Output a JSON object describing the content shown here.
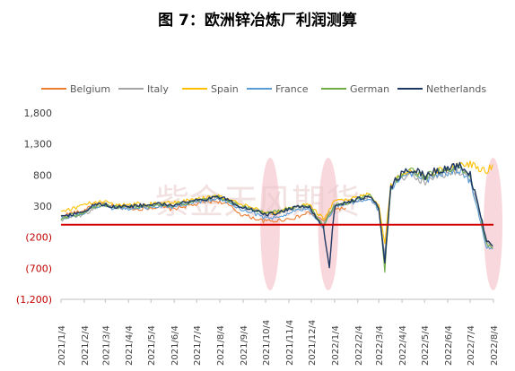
{
  "chart_data": {
    "type": "line",
    "title": "图 7：欧洲锌冶炼厂利润测算",
    "xlabel": "",
    "ylabel": "",
    "ylim": [
      -1200,
      1800
    ],
    "yticks": [
      {
        "value": 1800,
        "label": "1,800"
      },
      {
        "value": 1300,
        "label": "1,300"
      },
      {
        "value": 800,
        "label": "800"
      },
      {
        "value": 300,
        "label": "300"
      },
      {
        "value": -200,
        "label": "(200)"
      },
      {
        "value": -700,
        "label": "(700)"
      },
      {
        "value": -1200,
        "label": "(1,200)"
      }
    ],
    "xlim": [
      "2021-01-04",
      "2022-08-04"
    ],
    "xticks": [
      {
        "date": "2021-01-04",
        "label": "2021/1/4"
      },
      {
        "date": "2021-02-04",
        "label": "2021/2/4"
      },
      {
        "date": "2021-03-04",
        "label": "2021/3/4"
      },
      {
        "date": "2021-04-04",
        "label": "2021/4/4"
      },
      {
        "date": "2021-05-04",
        "label": "2021/5/4"
      },
      {
        "date": "2021-06-04",
        "label": "2021/6/4"
      },
      {
        "date": "2021-07-04",
        "label": "2021/7/4"
      },
      {
        "date": "2021-08-04",
        "label": "2021/8/4"
      },
      {
        "date": "2021-09-04",
        "label": "2021/9/4"
      },
      {
        "date": "2021-10-04",
        "label": "2021/10/4"
      },
      {
        "date": "2021-11-04",
        "label": "2021/11/4"
      },
      {
        "date": "2021-12-04",
        "label": "2021/12/4"
      },
      {
        "date": "2022-01-04",
        "label": "2022/1/4"
      },
      {
        "date": "2022-02-04",
        "label": "2022/2/4"
      },
      {
        "date": "2022-03-04",
        "label": "2022/3/4"
      },
      {
        "date": "2022-04-04",
        "label": "2022/4/4"
      },
      {
        "date": "2022-05-04",
        "label": "2022/5/4"
      },
      {
        "date": "2022-06-04",
        "label": "2022/6/4"
      },
      {
        "date": "2022-07-04",
        "label": "2022/7/4"
      },
      {
        "date": "2022-08-04",
        "label": "2022/8/4"
      }
    ],
    "legend_position": "top",
    "grid": false,
    "reference_line": {
      "value": 0,
      "color": "#d40000"
    },
    "highlights": [
      {
        "from": "2021-09-27",
        "to": "2021-10-23",
        "color": "#f4b8c1"
      },
      {
        "from": "2021-12-13",
        "to": "2022-01-09",
        "color": "#f4b8c1"
      },
      {
        "from": "2022-07-22",
        "to": "2022-08-16",
        "color": "#f4b8c1"
      }
    ],
    "watermark": "紫金天风期货",
    "series": [
      {
        "name": "Belgium",
        "color": "#ed7d31",
        "points": [
          [
            "2021-01-04",
            140
          ],
          [
            "2021-01-18",
            190
          ],
          [
            "2021-02-01",
            210
          ],
          [
            "2021-02-15",
            330
          ],
          [
            "2021-03-01",
            330
          ],
          [
            "2021-03-15",
            290
          ],
          [
            "2021-04-01",
            290
          ],
          [
            "2021-04-15",
            250
          ],
          [
            "2021-05-01",
            270
          ],
          [
            "2021-05-15",
            290
          ],
          [
            "2021-06-01",
            250
          ],
          [
            "2021-06-15",
            290
          ],
          [
            "2021-07-01",
            320
          ],
          [
            "2021-07-15",
            370
          ],
          [
            "2021-08-01",
            380
          ],
          [
            "2021-08-15",
            320
          ],
          [
            "2021-09-01",
            170
          ],
          [
            "2021-09-15",
            120
          ],
          [
            "2021-10-01",
            60
          ],
          [
            "2021-10-15",
            60
          ],
          [
            "2021-11-01",
            90
          ],
          [
            "2021-11-15",
            120
          ],
          [
            "2021-12-01",
            200
          ],
          [
            "2021-12-20",
            60
          ],
          [
            "2022-01-04",
            260
          ],
          [
            "2022-01-20",
            260
          ]
        ]
      },
      {
        "name": "Italy",
        "color": "#a5a5a5",
        "points": [
          [
            "2021-01-04",
            80
          ],
          [
            "2021-01-18",
            130
          ],
          [
            "2021-02-01",
            160
          ],
          [
            "2021-02-15",
            240
          ],
          [
            "2021-03-01",
            320
          ],
          [
            "2021-03-15",
            280
          ],
          [
            "2021-04-01",
            270
          ],
          [
            "2021-04-15",
            300
          ],
          [
            "2021-05-01",
            300
          ],
          [
            "2021-05-15",
            320
          ],
          [
            "2021-06-01",
            300
          ],
          [
            "2021-06-15",
            340
          ],
          [
            "2021-07-01",
            380
          ],
          [
            "2021-07-15",
            380
          ],
          [
            "2021-08-01",
            430
          ],
          [
            "2021-08-15",
            380
          ],
          [
            "2021-09-01",
            280
          ],
          [
            "2021-09-15",
            260
          ],
          [
            "2021-10-01",
            170
          ],
          [
            "2021-10-15",
            160
          ],
          [
            "2021-11-01",
            230
          ],
          [
            "2021-11-15",
            270
          ],
          [
            "2021-12-01",
            290
          ],
          [
            "2021-12-20",
            20
          ],
          [
            "2022-01-04",
            330
          ],
          [
            "2022-01-20",
            330
          ],
          [
            "2022-02-04",
            400
          ],
          [
            "2022-02-20",
            450
          ],
          [
            "2022-03-04",
            260
          ],
          [
            "2022-03-12",
            -500
          ],
          [
            "2022-03-20",
            600
          ],
          [
            "2022-04-04",
            760
          ],
          [
            "2022-04-20",
            800
          ],
          [
            "2022-05-04",
            680
          ],
          [
            "2022-05-20",
            780
          ],
          [
            "2022-06-04",
            820
          ],
          [
            "2022-06-20",
            860
          ],
          [
            "2022-07-04",
            740
          ],
          [
            "2022-07-15",
            280
          ],
          [
            "2022-07-25",
            -300
          ],
          [
            "2022-08-04",
            -360
          ]
        ]
      },
      {
        "name": "Spain",
        "color": "#ffc000",
        "points": [
          [
            "2021-01-04",
            220
          ],
          [
            "2021-01-18",
            260
          ],
          [
            "2021-02-01",
            300
          ],
          [
            "2021-02-15",
            360
          ],
          [
            "2021-03-01",
            380
          ],
          [
            "2021-03-15",
            320
          ],
          [
            "2021-04-01",
            320
          ],
          [
            "2021-04-15",
            340
          ],
          [
            "2021-05-01",
            330
          ],
          [
            "2021-05-15",
            360
          ],
          [
            "2021-06-01",
            350
          ],
          [
            "2021-06-15",
            380
          ],
          [
            "2021-07-01",
            410
          ],
          [
            "2021-07-15",
            430
          ],
          [
            "2021-08-01",
            460
          ],
          [
            "2021-08-15",
            420
          ],
          [
            "2021-09-01",
            320
          ],
          [
            "2021-09-15",
            290
          ],
          [
            "2021-10-01",
            190
          ],
          [
            "2021-10-15",
            190
          ],
          [
            "2021-11-01",
            260
          ],
          [
            "2021-11-15",
            300
          ],
          [
            "2021-12-01",
            320
          ],
          [
            "2021-12-20",
            100
          ],
          [
            "2022-01-04",
            380
          ],
          [
            "2022-01-20",
            400
          ],
          [
            "2022-02-04",
            450
          ],
          [
            "2022-02-20",
            500
          ],
          [
            "2022-03-04",
            330
          ],
          [
            "2022-03-12",
            -300
          ],
          [
            "2022-03-20",
            640
          ],
          [
            "2022-04-04",
            820
          ],
          [
            "2022-04-20",
            880
          ],
          [
            "2022-05-04",
            760
          ],
          [
            "2022-05-20",
            860
          ],
          [
            "2022-06-04",
            900
          ],
          [
            "2022-06-20",
            950
          ],
          [
            "2022-07-04",
            980
          ],
          [
            "2022-07-15",
            920
          ],
          [
            "2022-07-25",
            880
          ],
          [
            "2022-08-04",
            930
          ]
        ]
      },
      {
        "name": "France",
        "color": "#5b9bd5",
        "points": [
          [
            "2021-01-04",
            90
          ],
          [
            "2021-01-18",
            140
          ],
          [
            "2021-02-01",
            170
          ],
          [
            "2021-02-15",
            280
          ],
          [
            "2021-03-01",
            320
          ],
          [
            "2021-03-15",
            260
          ],
          [
            "2021-04-01",
            260
          ],
          [
            "2021-04-15",
            280
          ],
          [
            "2021-05-01",
            280
          ],
          [
            "2021-05-15",
            310
          ],
          [
            "2021-06-01",
            290
          ],
          [
            "2021-06-15",
            320
          ],
          [
            "2021-07-01",
            370
          ],
          [
            "2021-07-15",
            380
          ],
          [
            "2021-08-01",
            430
          ],
          [
            "2021-08-15",
            370
          ],
          [
            "2021-09-01",
            250
          ],
          [
            "2021-09-15",
            210
          ],
          [
            "2021-10-01",
            110
          ],
          [
            "2021-10-15",
            110
          ],
          [
            "2021-11-01",
            170
          ],
          [
            "2021-11-15",
            230
          ],
          [
            "2021-12-01",
            260
          ],
          [
            "2021-12-20",
            -50
          ],
          [
            "2022-01-04",
            300
          ],
          [
            "2022-01-20",
            330
          ],
          [
            "2022-02-04",
            380
          ],
          [
            "2022-02-20",
            430
          ],
          [
            "2022-03-04",
            230
          ],
          [
            "2022-03-12",
            -560
          ],
          [
            "2022-03-20",
            580
          ],
          [
            "2022-04-04",
            780
          ],
          [
            "2022-04-20",
            830
          ],
          [
            "2022-05-04",
            720
          ],
          [
            "2022-05-20",
            800
          ],
          [
            "2022-06-04",
            850
          ],
          [
            "2022-06-20",
            880
          ],
          [
            "2022-07-04",
            700
          ],
          [
            "2022-07-15",
            200
          ],
          [
            "2022-07-25",
            -350
          ],
          [
            "2022-08-04",
            -420
          ]
        ]
      },
      {
        "name": "German",
        "color": "#70ad47",
        "points": [
          [
            "2021-01-04",
            100
          ],
          [
            "2021-01-18",
            150
          ],
          [
            "2021-02-01",
            180
          ],
          [
            "2021-02-15",
            290
          ],
          [
            "2021-03-01",
            320
          ],
          [
            "2021-03-15",
            280
          ],
          [
            "2021-04-01",
            280
          ],
          [
            "2021-04-15",
            300
          ],
          [
            "2021-05-01",
            300
          ],
          [
            "2021-05-15",
            330
          ],
          [
            "2021-06-01",
            310
          ],
          [
            "2021-06-15",
            340
          ],
          [
            "2021-07-01",
            380
          ],
          [
            "2021-07-15",
            400
          ],
          [
            "2021-08-01",
            450
          ],
          [
            "2021-08-15",
            390
          ],
          [
            "2021-09-01",
            290
          ],
          [
            "2021-09-15",
            260
          ],
          [
            "2021-10-01",
            190
          ],
          [
            "2021-10-15",
            200
          ],
          [
            "2021-11-01",
            250
          ],
          [
            "2021-11-15",
            280
          ],
          [
            "2021-12-01",
            300
          ],
          [
            "2021-12-20",
            -20
          ],
          [
            "2022-01-04",
            320
          ],
          [
            "2022-01-20",
            350
          ],
          [
            "2022-02-04",
            420
          ],
          [
            "2022-02-20",
            470
          ],
          [
            "2022-03-04",
            270
          ],
          [
            "2022-03-12",
            -740
          ],
          [
            "2022-03-20",
            620
          ],
          [
            "2022-04-04",
            830
          ],
          [
            "2022-04-20",
            880
          ],
          [
            "2022-05-04",
            760
          ],
          [
            "2022-05-20",
            860
          ],
          [
            "2022-06-04",
            900
          ],
          [
            "2022-06-20",
            940
          ],
          [
            "2022-07-04",
            780
          ],
          [
            "2022-07-15",
            300
          ],
          [
            "2022-07-25",
            -300
          ],
          [
            "2022-08-04",
            -380
          ]
        ]
      },
      {
        "name": "Netherlands",
        "color": "#203864",
        "points": [
          [
            "2021-01-04",
            110
          ],
          [
            "2021-01-18",
            160
          ],
          [
            "2021-02-01",
            190
          ],
          [
            "2021-02-15",
            300
          ],
          [
            "2021-03-01",
            330
          ],
          [
            "2021-03-15",
            290
          ],
          [
            "2021-04-01",
            290
          ],
          [
            "2021-04-15",
            310
          ],
          [
            "2021-05-01",
            310
          ],
          [
            "2021-05-15",
            340
          ],
          [
            "2021-06-01",
            320
          ],
          [
            "2021-06-15",
            350
          ],
          [
            "2021-07-01",
            390
          ],
          [
            "2021-07-15",
            410
          ],
          [
            "2021-08-01",
            450
          ],
          [
            "2021-08-15",
            400
          ],
          [
            "2021-09-01",
            290
          ],
          [
            "2021-09-15",
            260
          ],
          [
            "2021-10-01",
            170
          ],
          [
            "2021-10-15",
            180
          ],
          [
            "2021-11-01",
            240
          ],
          [
            "2021-11-15",
            280
          ],
          [
            "2021-12-01",
            300
          ],
          [
            "2021-12-20",
            -50
          ],
          [
            "2021-12-28",
            -680
          ],
          [
            "2022-01-04",
            310
          ],
          [
            "2022-01-20",
            350
          ],
          [
            "2022-02-04",
            420
          ],
          [
            "2022-02-20",
            470
          ],
          [
            "2022-03-04",
            270
          ],
          [
            "2022-03-12",
            -620
          ],
          [
            "2022-03-20",
            620
          ],
          [
            "2022-04-04",
            840
          ],
          [
            "2022-04-20",
            900
          ],
          [
            "2022-05-04",
            780
          ],
          [
            "2022-05-20",
            880
          ],
          [
            "2022-06-04",
            920
          ],
          [
            "2022-06-20",
            960
          ],
          [
            "2022-07-04",
            800
          ],
          [
            "2022-07-15",
            320
          ],
          [
            "2022-07-25",
            -250
          ],
          [
            "2022-08-04",
            -360
          ]
        ]
      }
    ]
  }
}
